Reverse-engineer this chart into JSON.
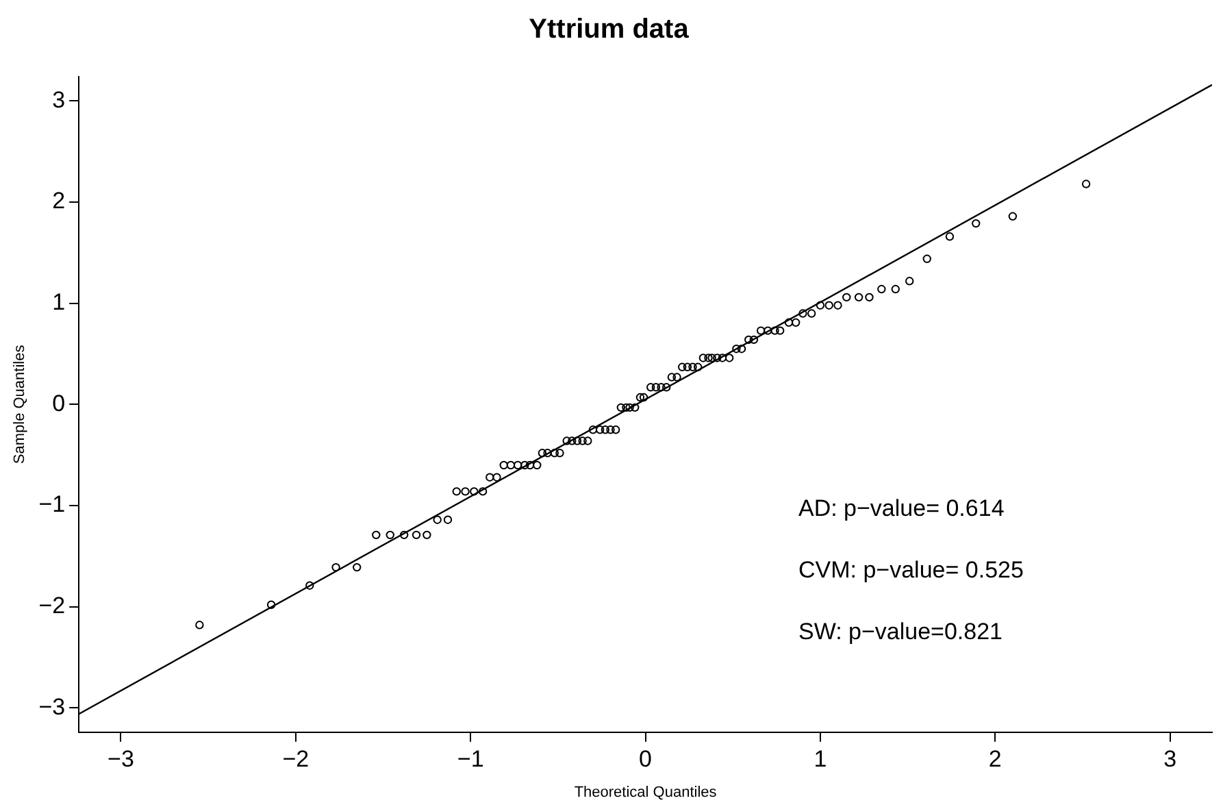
{
  "chart_data": {
    "type": "scatter",
    "title": "Yttrium data",
    "xlabel": "Theoretical Quantiles",
    "ylabel": "Sample Quantiles",
    "xlim": [
      -3.24,
      3.24
    ],
    "ylim": [
      -3.24,
      3.24
    ],
    "xticks": [
      -3,
      -2,
      -1,
      0,
      1,
      2,
      3
    ],
    "yticks": [
      -3,
      -2,
      -1,
      0,
      1,
      2,
      3
    ],
    "grid": false,
    "legend": false,
    "marker": "circle",
    "annotations": [
      "AD: p−value= 0.614",
      "CVM: p−value= 0.525",
      "SW: p−value=0.821"
    ],
    "series": [
      {
        "color": "#000000",
        "x": [
          -2.55,
          -2.14,
          -1.92,
          -1.77,
          -1.65,
          -1.54,
          -1.46,
          -1.38,
          -1.31,
          -1.25,
          -1.19,
          -1.13,
          -1.08,
          -1.03,
          -0.98,
          -0.93,
          -0.89,
          -0.85,
          -0.81,
          -0.77,
          -0.73,
          -0.69,
          -0.66,
          -0.62,
          -0.59,
          -0.56,
          -0.52,
          -0.49,
          -0.45,
          -0.42,
          -0.39,
          -0.36,
          -0.33,
          -0.3,
          -0.26,
          -0.23,
          -0.2,
          -0.17,
          -0.14,
          -0.11,
          -0.09,
          -0.06,
          -0.03,
          -0.01,
          0.03,
          0.06,
          0.09,
          0.12,
          0.15,
          0.18,
          0.21,
          0.24,
          0.27,
          0.3,
          0.33,
          0.36,
          0.38,
          0.41,
          0.44,
          0.48,
          0.52,
          0.55,
          0.59,
          0.62,
          0.66,
          0.7,
          0.74,
          0.77,
          0.82,
          0.86,
          0.9,
          0.95,
          1.0,
          1.05,
          1.1,
          1.15,
          1.22,
          1.28,
          1.35,
          1.43,
          1.51,
          1.61,
          1.74,
          1.89,
          2.1,
          2.52
        ],
        "values": [
          -2.18,
          -1.98,
          -1.79,
          -1.61,
          -1.61,
          -1.29,
          -1.29,
          -1.29,
          -1.29,
          -1.29,
          -1.14,
          -1.14,
          -0.86,
          -0.86,
          -0.86,
          -0.86,
          -0.72,
          -0.72,
          -0.6,
          -0.6,
          -0.6,
          -0.6,
          -0.6,
          -0.6,
          -0.48,
          -0.48,
          -0.48,
          -0.48,
          -0.36,
          -0.36,
          -0.36,
          -0.36,
          -0.36,
          -0.25,
          -0.25,
          -0.25,
          -0.25,
          -0.25,
          -0.03,
          -0.03,
          -0.03,
          -0.03,
          0.07,
          0.07,
          0.17,
          0.17,
          0.17,
          0.17,
          0.27,
          0.27,
          0.37,
          0.37,
          0.37,
          0.37,
          0.46,
          0.46,
          0.46,
          0.46,
          0.46,
          0.46,
          0.55,
          0.55,
          0.64,
          0.64,
          0.73,
          0.73,
          0.73,
          0.73,
          0.81,
          0.81,
          0.9,
          0.9,
          0.98,
          0.98,
          0.98,
          1.06,
          1.06,
          1.06,
          1.14,
          1.14,
          1.22,
          1.44,
          1.66,
          1.79,
          1.86,
          2.18
        ]
      },
      {
        "type": "line",
        "color": "#000000",
        "marker": "none",
        "x": [
          -3.24,
          3.24
        ],
        "values": [
          -3.06,
          3.16
        ]
      }
    ]
  }
}
